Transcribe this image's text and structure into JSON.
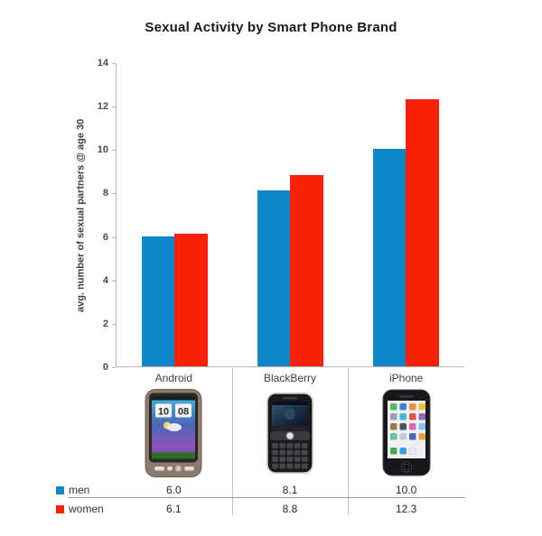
{
  "chart_data": {
    "type": "bar",
    "title": "Sexual Activity by Smart Phone Brand",
    "ylabel": "avg. number of sexual partners @ age 30",
    "xlabel": "",
    "categories": [
      "Android",
      "BlackBerry",
      "iPhone"
    ],
    "series": [
      {
        "name": "men",
        "color": "#0f86c8",
        "values": [
          6.0,
          8.1,
          10.0
        ]
      },
      {
        "name": "women",
        "color": "#f92108",
        "values": [
          6.1,
          8.8,
          12.3
        ]
      }
    ],
    "ylim": [
      0,
      14
    ],
    "ytick_step": 2,
    "grid": false,
    "legend_position": "bottom-table"
  },
  "table": {
    "rows": [
      {
        "label": "men",
        "values": [
          "6.0",
          "8.1",
          "10.0"
        ]
      },
      {
        "label": "women",
        "values": [
          "6.1",
          "8.8",
          "12.3"
        ]
      }
    ]
  },
  "phones": {
    "android_clock_hours": "10",
    "android_clock_minutes": "08"
  },
  "colors": {
    "men": "#0f86c8",
    "women": "#f92108",
    "axis": "#b7b7b7"
  }
}
